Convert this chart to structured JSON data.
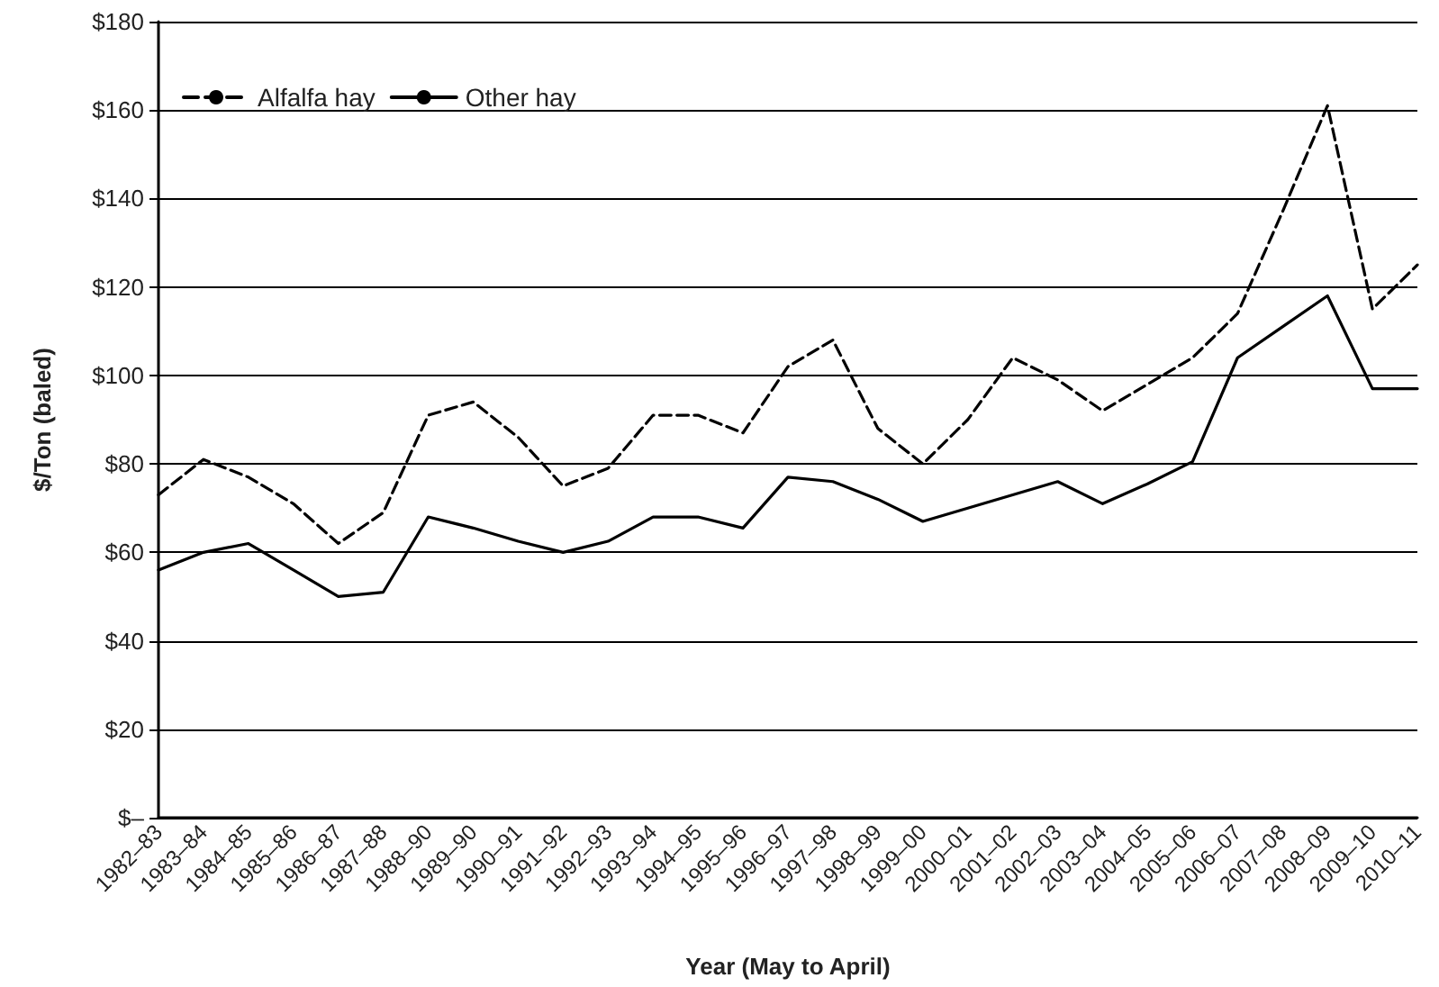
{
  "chart_data": {
    "type": "line",
    "xlabel": "Year (May to April)",
    "ylabel": "$/Ton (baled)",
    "categories": [
      "1982–83",
      "1983–84",
      "1984–85",
      "1985–86",
      "1986–87",
      "1987–88",
      "1988–90",
      "1989–90",
      "1990–91",
      "1991–92",
      "1992–93",
      "1993–94",
      "1994–95",
      "1995–96",
      "1996–97",
      "1997–98",
      "1998–99",
      "1999–00",
      "2000–01",
      "2001–02",
      "2002–03",
      "2003–04",
      "2004–05",
      "2005–06",
      "2006–07",
      "2007–08",
      "2008–09",
      "2009–10",
      "2010–11"
    ],
    "series": [
      {
        "name": "Alfalfa hay",
        "color": "#000000",
        "line_style": "dashed",
        "values": [
          73,
          81,
          77,
          71,
          62,
          69,
          91,
          94,
          86,
          75,
          79,
          91,
          91,
          87,
          102,
          108,
          88,
          80,
          90,
          104,
          99,
          92,
          98,
          104,
          114,
          137,
          161,
          115,
          125
        ]
      },
      {
        "name": "Other hay",
        "color": "#000000",
        "line_style": "solid",
        "values": [
          56,
          60,
          62,
          56,
          50,
          51,
          68,
          65.5,
          62.5,
          60,
          62.5,
          68,
          68,
          65.5,
          77,
          76,
          72,
          67,
          70,
          73,
          76,
          71,
          75.5,
          80.5,
          104,
          111,
          118,
          97,
          97
        ]
      }
    ],
    "ylim": [
      0,
      180
    ],
    "yticks": [
      {
        "value": 0,
        "label": "$–"
      },
      {
        "value": 20,
        "label": "$20"
      },
      {
        "value": 40,
        "label": "$40"
      },
      {
        "value": 60,
        "label": "$60"
      },
      {
        "value": 80,
        "label": "$80"
      },
      {
        "value": 100,
        "label": "$100"
      },
      {
        "value": 120,
        "label": "$120"
      },
      {
        "value": 140,
        "label": "$140"
      },
      {
        "value": 160,
        "label": "$160"
      },
      {
        "value": 180,
        "label": "$180"
      }
    ],
    "grid": "y",
    "legend": "top left",
    "marker": "none"
  }
}
